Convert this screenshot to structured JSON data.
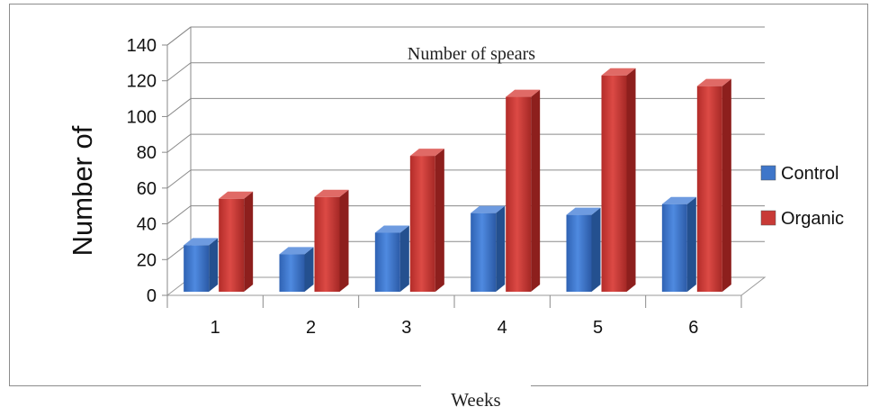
{
  "chart_data": {
    "type": "bar",
    "title": "Number of spears",
    "xlabel": "Weeks",
    "ylabel": "Number of",
    "categories": [
      "1",
      "2",
      "3",
      "4",
      "5",
      "6"
    ],
    "series": [
      {
        "name": "Control",
        "values": [
          27,
          22,
          34,
          45,
          44,
          50
        ],
        "color": "#3f76c9"
      },
      {
        "name": "Organic",
        "values": [
          53,
          54,
          77,
          110,
          122,
          116
        ],
        "color": "#c83a36"
      }
    ],
    "ylim": [
      0,
      140
    ],
    "yticks": [
      "0",
      "20",
      "40",
      "60",
      "80",
      "100",
      "120",
      "140"
    ],
    "grid": true,
    "legend_position": "right",
    "style": "3d-column"
  }
}
